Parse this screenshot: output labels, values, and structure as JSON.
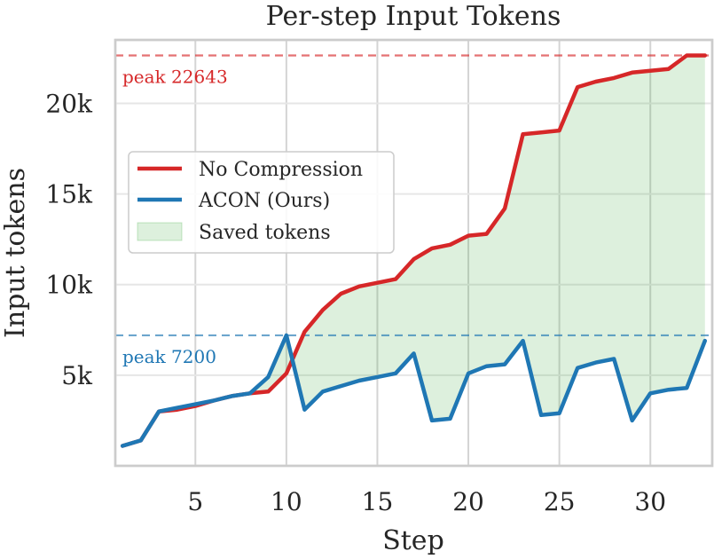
{
  "chart_data": {
    "type": "line",
    "title": "Per-step Input Tokens",
    "xlabel": "Step",
    "ylabel": "Input tokens",
    "xlim": [
      0.6,
      33.4
    ],
    "ylim": [
      0,
      23500
    ],
    "x_ticks": [
      5,
      10,
      15,
      20,
      25,
      30
    ],
    "y_ticks": [
      5000,
      10000,
      15000,
      20000
    ],
    "x_tick_labels": [
      "5",
      "10",
      "15",
      "20",
      "25",
      "30"
    ],
    "y_tick_labels": [
      "5k",
      "10k",
      "15k",
      "20k"
    ],
    "grid": true,
    "legend_position": "center-left",
    "x": [
      1,
      2,
      3,
      4,
      5,
      6,
      7,
      8,
      9,
      10,
      11,
      12,
      13,
      14,
      15,
      16,
      17,
      18,
      19,
      20,
      21,
      22,
      23,
      24,
      25,
      26,
      27,
      28,
      29,
      30,
      31,
      32,
      33
    ],
    "series": [
      {
        "name": "No Compression",
        "color": "#d62728",
        "values": [
          1100,
          1400,
          3000,
          3100,
          3300,
          3600,
          3850,
          4000,
          4100,
          5100,
          7400,
          8600,
          9500,
          9900,
          10100,
          10300,
          11400,
          12000,
          12200,
          12700,
          12800,
          14200,
          18300,
          18400,
          18500,
          20900,
          21200,
          21400,
          21700,
          21800,
          21900,
          22643,
          22643
        ]
      },
      {
        "name": "ACON (Ours)",
        "color": "#1f77b4",
        "values": [
          1100,
          1400,
          3000,
          3200,
          3400,
          3600,
          3850,
          4000,
          4900,
          7200,
          3100,
          4100,
          4400,
          4700,
          4900,
          5100,
          6200,
          2500,
          2600,
          5100,
          5500,
          5600,
          6900,
          2800,
          2900,
          5400,
          5700,
          5900,
          2500,
          4000,
          4200,
          4300,
          6900
        ]
      }
    ],
    "fill": {
      "name": "Saved tokens",
      "color": "#2ca02c",
      "between": [
        "No Compression",
        "ACON (Ours)"
      ]
    },
    "reference_lines": [
      {
        "value": 22643,
        "label": "peak 22643",
        "color": "#d62728"
      },
      {
        "value": 7200,
        "label": "peak 7200",
        "color": "#1f77b4"
      }
    ]
  }
}
